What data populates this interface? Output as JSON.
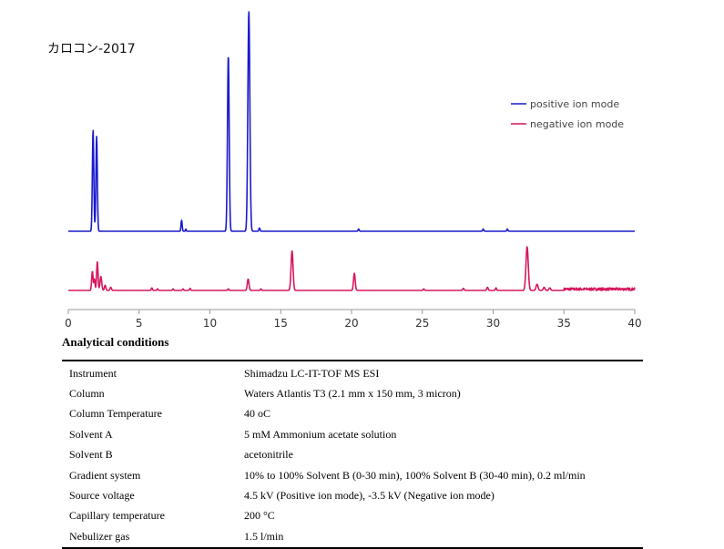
{
  "chart_data": {
    "type": "line",
    "title": "カロコン-2017",
    "xlabel": "",
    "ylabel": "",
    "xlim": [
      0,
      40
    ],
    "xticks": [
      "0",
      "5",
      "10",
      "15",
      "20",
      "25",
      "30",
      "35",
      "40"
    ],
    "legend_position": "top-right",
    "series": [
      {
        "name": "positive ion mode",
        "color": "#1a1acc",
        "peaks": [
          {
            "x": 1.75,
            "height": 0.46,
            "width": 0.05
          },
          {
            "x": 2.0,
            "height": 0.43,
            "width": 0.05
          },
          {
            "x": 8.0,
            "height": 0.05,
            "width": 0.04
          },
          {
            "x": 8.3,
            "height": 0.01,
            "width": 0.03
          },
          {
            "x": 11.3,
            "height": 0.8,
            "width": 0.06
          },
          {
            "x": 12.75,
            "height": 1.0,
            "width": 0.07
          },
          {
            "x": 13.5,
            "height": 0.015,
            "width": 0.04
          },
          {
            "x": 20.5,
            "height": 0.01,
            "width": 0.04
          },
          {
            "x": 29.3,
            "height": 0.01,
            "width": 0.04
          },
          {
            "x": 31.0,
            "height": 0.01,
            "width": 0.04
          }
        ]
      },
      {
        "name": "negative ion mode",
        "color": "#d6175e",
        "peaks": [
          {
            "x": 1.7,
            "height": 0.37,
            "width": 0.05
          },
          {
            "x": 1.85,
            "height": 0.22,
            "width": 0.04
          },
          {
            "x": 2.05,
            "height": 0.55,
            "width": 0.05
          },
          {
            "x": 2.3,
            "height": 0.27,
            "width": 0.06
          },
          {
            "x": 2.6,
            "height": 0.1,
            "width": 0.05
          },
          {
            "x": 3.0,
            "height": 0.06,
            "width": 0.05
          },
          {
            "x": 5.9,
            "height": 0.05,
            "width": 0.04
          },
          {
            "x": 6.3,
            "height": 0.03,
            "width": 0.04
          },
          {
            "x": 7.4,
            "height": 0.03,
            "width": 0.04
          },
          {
            "x": 8.1,
            "height": 0.03,
            "width": 0.04
          },
          {
            "x": 8.6,
            "height": 0.04,
            "width": 0.04
          },
          {
            "x": 11.3,
            "height": 0.03,
            "width": 0.04
          },
          {
            "x": 12.7,
            "height": 0.22,
            "width": 0.06
          },
          {
            "x": 13.6,
            "height": 0.03,
            "width": 0.04
          },
          {
            "x": 15.8,
            "height": 0.76,
            "width": 0.07
          },
          {
            "x": 20.2,
            "height": 0.33,
            "width": 0.06
          },
          {
            "x": 25.1,
            "height": 0.03,
            "width": 0.04
          },
          {
            "x": 27.9,
            "height": 0.04,
            "width": 0.05
          },
          {
            "x": 29.6,
            "height": 0.06,
            "width": 0.05
          },
          {
            "x": 30.2,
            "height": 0.05,
            "width": 0.04
          },
          {
            "x": 32.4,
            "height": 0.84,
            "width": 0.08
          },
          {
            "x": 33.1,
            "height": 0.12,
            "width": 0.07
          },
          {
            "x": 33.6,
            "height": 0.06,
            "width": 0.06
          },
          {
            "x": 34.0,
            "height": 0.05,
            "width": 0.06
          }
        ],
        "noise": {
          "from": 35.0,
          "to": 40.0,
          "amplitude": 0.05
        }
      }
    ]
  },
  "conditions": {
    "title": "Analytical conditions",
    "rows": [
      {
        "label": "Instrument",
        "value": "Shimadzu LC-IT-TOF MS ESI"
      },
      {
        "label": "Column",
        "value": "Waters Atlantis T3 (2.1 mm x 150 mm, 3 micron)"
      },
      {
        "label": "Column Temperature",
        "value": "40 oC"
      },
      {
        "label": "Solvent A",
        "value": "5 mM Ammonium acetate solution"
      },
      {
        "label": "Solvent B",
        "value": "acetonitrile"
      },
      {
        "label": "Gradient system",
        "value": "10% to 100% Solvent B (0-30 min), 100% Solvent B (30-40 min), 0.2 ml/min"
      },
      {
        "label": "Source voltage",
        "value": "4.5 kV (Positive ion mode), -3.5 kV (Negative ion mode)"
      },
      {
        "label": "Capillary temperature",
        "value": "200 °C"
      },
      {
        "label": "Nebulizer gas",
        "value": "1.5 l/min"
      }
    ]
  }
}
